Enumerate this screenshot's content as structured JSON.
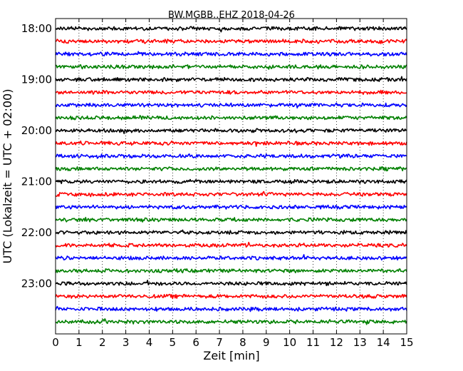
{
  "chart_data": {
    "type": "line",
    "title": "BW.MGBB..EHZ 2018-04-26",
    "xlabel": "Zeit  [min]",
    "ylabel": "UTC (Lokalzeit = UTC + 02:00)",
    "xlim": [
      0,
      15
    ],
    "x_ticks": [
      "0",
      "1",
      "2",
      "3",
      "4",
      "5",
      "6",
      "7",
      "8",
      "9",
      "10",
      "11",
      "12",
      "13",
      "14",
      "15"
    ],
    "y_tick_labels": [
      "18:00",
      "19:00",
      "20:00",
      "21:00",
      "22:00",
      "23:00"
    ],
    "grid": "vertical dotted",
    "trace_colors": [
      "#000000",
      "#ff0000",
      "#0000ff",
      "#008000"
    ],
    "traces": [
      {
        "start": "18:00"
      },
      {
        "start": "18:15"
      },
      {
        "start": "18:30"
      },
      {
        "start": "18:45"
      },
      {
        "start": "19:00"
      },
      {
        "start": "19:15"
      },
      {
        "start": "19:30"
      },
      {
        "start": "19:45"
      },
      {
        "start": "20:00"
      },
      {
        "start": "20:15"
      },
      {
        "start": "20:30"
      },
      {
        "start": "20:45"
      },
      {
        "start": "21:00"
      },
      {
        "start": "21:15"
      },
      {
        "start": "21:30"
      },
      {
        "start": "21:45"
      },
      {
        "start": "22:00"
      },
      {
        "start": "22:15"
      },
      {
        "start": "22:30"
      },
      {
        "start": "22:45"
      },
      {
        "start": "23:00"
      },
      {
        "start": "23:15"
      },
      {
        "start": "23:30"
      },
      {
        "start": "23:45"
      }
    ]
  }
}
